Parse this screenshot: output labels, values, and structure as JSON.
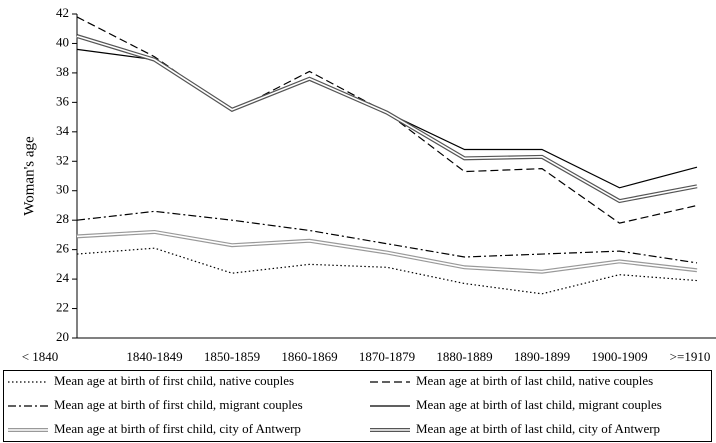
{
  "chart_data": {
    "type": "line",
    "y_label": "Woman's age",
    "categories": [
      "< 1840",
      "1840-1849",
      "1850-1859",
      "1860-1869",
      "1870-1879",
      "1880-1889",
      "1890-1899",
      "1900-1909",
      ">=1910"
    ],
    "series": [
      {
        "name": "Mean age at birth of first child, native couples",
        "color": "#000000",
        "style": "dotted",
        "values": [
          25.7,
          26.1,
          24.4,
          25.0,
          24.8,
          23.7,
          23.0,
          24.3,
          23.9
        ]
      },
      {
        "name": "Mean age at birth of last child, native couples",
        "color": "#000000",
        "style": "dashed",
        "values": [
          41.8,
          39.1,
          35.4,
          38.1,
          35.3,
          31.3,
          31.5,
          27.8,
          29.0
        ]
      },
      {
        "name": "Mean age at birth of first child, migrant couples",
        "color": "#000000",
        "style": "dashdot",
        "values": [
          28.0,
          28.6,
          28.0,
          27.3,
          26.4,
          25.5,
          25.7,
          25.9,
          25.1
        ]
      },
      {
        "name": "Mean age at birth of last child, migrant couples",
        "color": "#000000",
        "style": "solid",
        "values": [
          39.6,
          38.9,
          35.6,
          37.5,
          35.3,
          32.8,
          32.8,
          30.2,
          31.6
        ]
      },
      {
        "name": "Mean age at birth of first child, city of Antwerp",
        "color": "#999999",
        "style": "double",
        "values": [
          26.9,
          27.2,
          26.3,
          26.6,
          25.8,
          24.8,
          24.5,
          25.2,
          24.6
        ]
      },
      {
        "name": "Mean age at birth of last child, city of Antwerp",
        "color": "#555555",
        "style": "double",
        "values": [
          40.5,
          38.9,
          35.5,
          37.6,
          35.3,
          32.2,
          32.3,
          29.3,
          30.3
        ]
      }
    ],
    "ylim": [
      20,
      42
    ],
    "yticks": [
      20,
      22,
      24,
      26,
      28,
      30,
      32,
      34,
      36,
      38,
      40,
      42
    ],
    "grid": false
  }
}
